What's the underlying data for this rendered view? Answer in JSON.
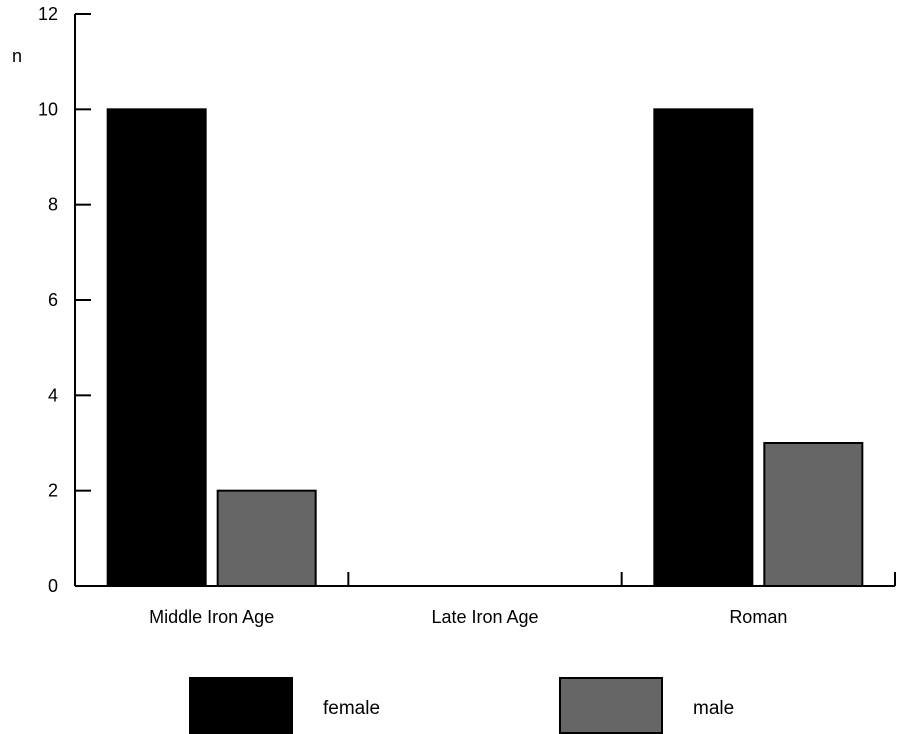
{
  "chart_data": {
    "type": "bar",
    "title": "",
    "xlabel": "",
    "ylabel": "n",
    "ylim": [
      0,
      12
    ],
    "yticks": [
      0,
      2,
      4,
      6,
      8,
      10,
      12
    ],
    "grid": false,
    "legend_position": "bottom",
    "categories": [
      "Middle Iron Age",
      "Late Iron Age",
      "Roman"
    ],
    "series": [
      {
        "name": "female",
        "color": "#000000",
        "values": [
          10,
          0,
          10
        ]
      },
      {
        "name": "male",
        "color": "#666666",
        "values": [
          2,
          0,
          3
        ]
      }
    ]
  }
}
